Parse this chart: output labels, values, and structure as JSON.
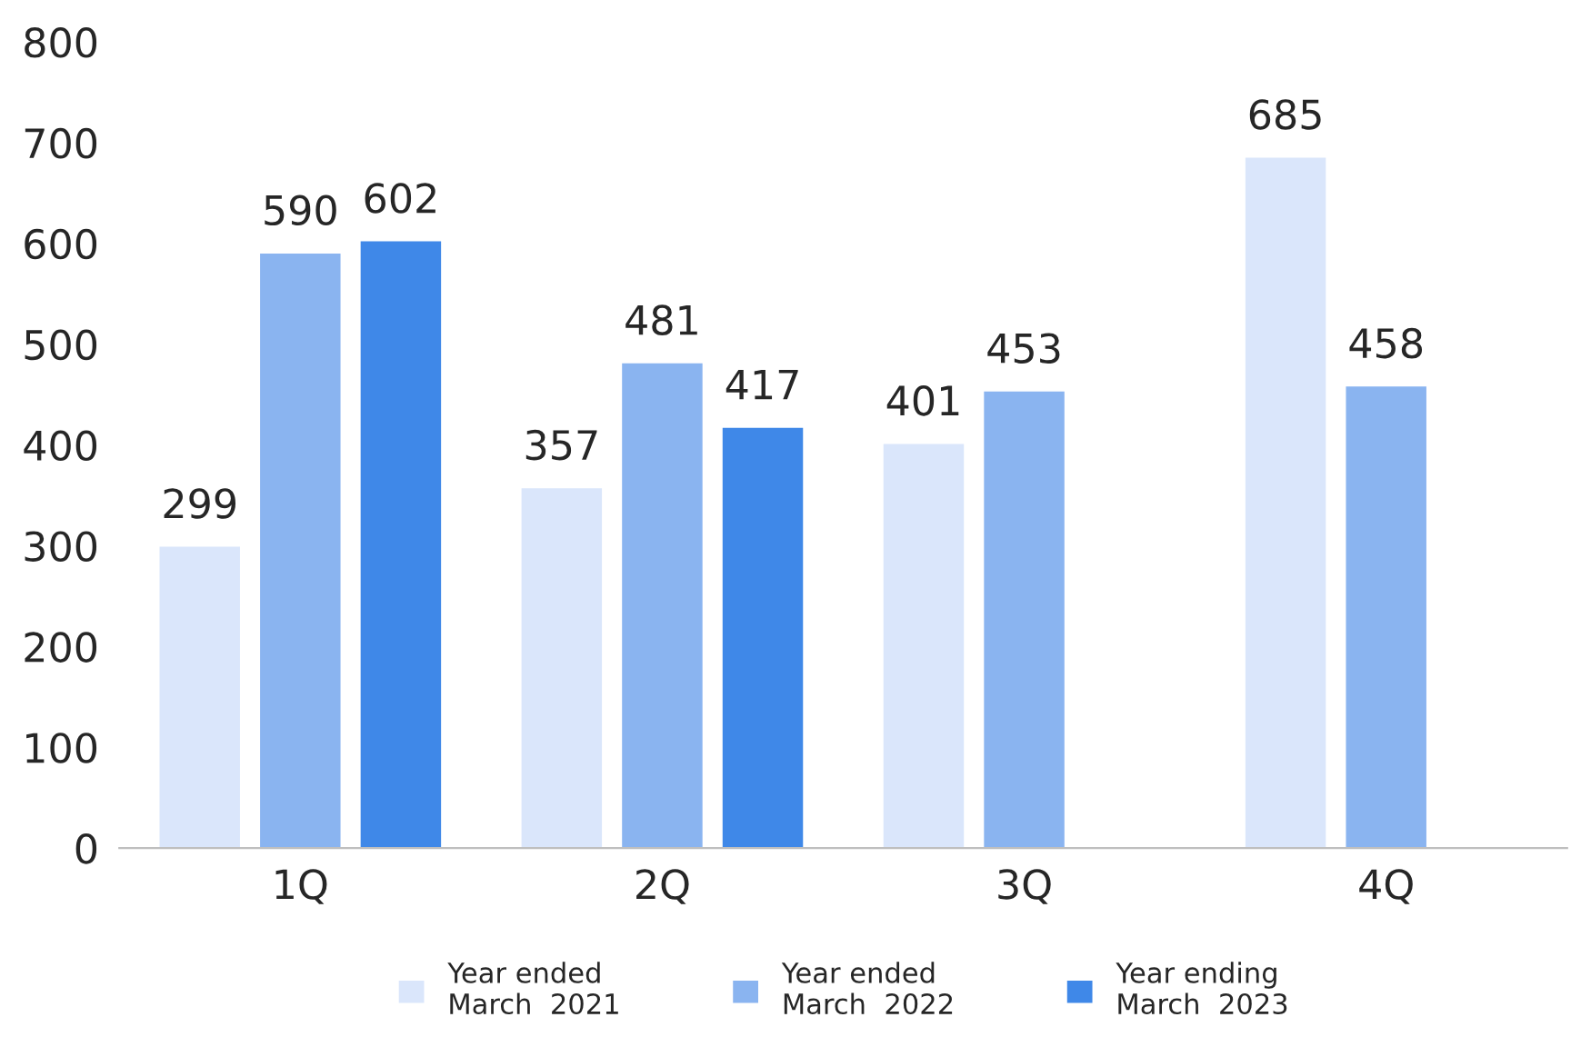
{
  "chart_data": {
    "type": "bar",
    "categories": [
      "1Q",
      "2Q",
      "3Q",
      "4Q"
    ],
    "series": [
      {
        "name": "Year ended\nMarch  2021",
        "color": "#dae6fb",
        "values": [
          299,
          357,
          401,
          685
        ]
      },
      {
        "name": "Year ended\nMarch  2022",
        "color": "#8ab4f0",
        "values": [
          590,
          481,
          453,
          458
        ]
      },
      {
        "name": "Year ending\nMarch  2023",
        "color": "#3f88e8",
        "values": [
          602,
          417,
          null,
          null
        ]
      }
    ],
    "ylim": [
      0,
      800
    ],
    "yticks": [
      0,
      100,
      200,
      300,
      400,
      500,
      600,
      700,
      800
    ],
    "data_labels": true,
    "grid": false,
    "legend": "bottom"
  }
}
